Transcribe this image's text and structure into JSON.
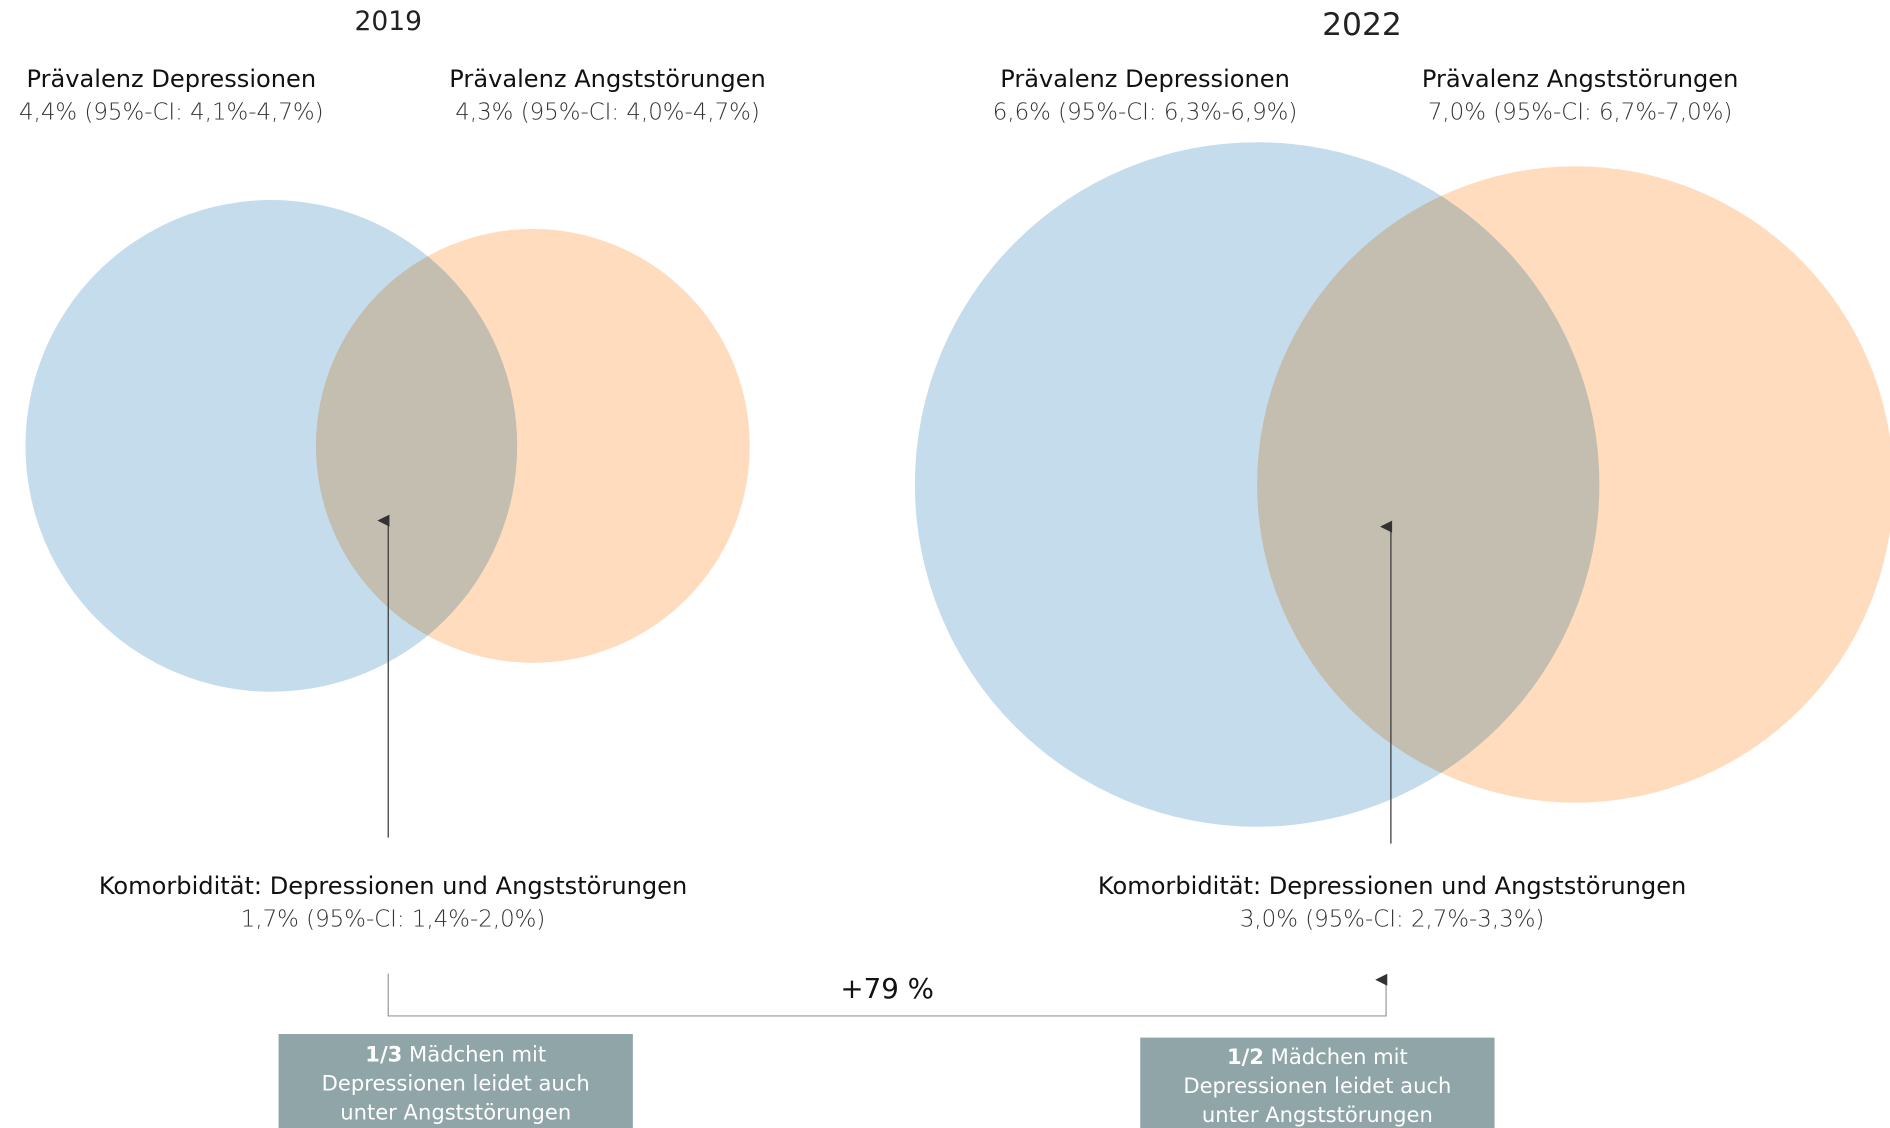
{
  "panels": [
    {
      "year": "2019",
      "depression": {
        "label": "Prävalenz Depressionen",
        "value": "4,4% (95%-CI: 4,1%-4,7%)"
      },
      "anxiety": {
        "label": "Prävalenz Angststörungen",
        "value": "4,3% (95%-CI: 4,0%-4,7%)"
      },
      "comorbidity": {
        "label": "Komorbidität: Depressionen und Angststörungen",
        "value": "1,7% (95%-CI: 1,4%-2,0%)"
      },
      "note": {
        "fraction": "1/3",
        "lines": [
          "Mädchen mit",
          "Depressionen leidet auch",
          "unter Angststörungen"
        ]
      }
    },
    {
      "year": "2022",
      "depression": {
        "label": "Prävalenz Depressionen",
        "value": "6,6% (95%-CI: 6,3%-6,9%)"
      },
      "anxiety": {
        "label": "Prävalenz Angststörungen",
        "value": "7,0% (95%-CI: 6,7%-7,0%)"
      },
      "comorbidity": {
        "label": "Komorbidität: Depressionen und Angststörungen",
        "value": "3,0% (95%-CI: 2,7%-3,3%)"
      },
      "note": {
        "fraction": "1/2",
        "lines": [
          "Mädchen mit",
          "Depressionen leidet auch",
          "unter Angststörungen"
        ]
      }
    }
  ],
  "change": "+79 %"
}
